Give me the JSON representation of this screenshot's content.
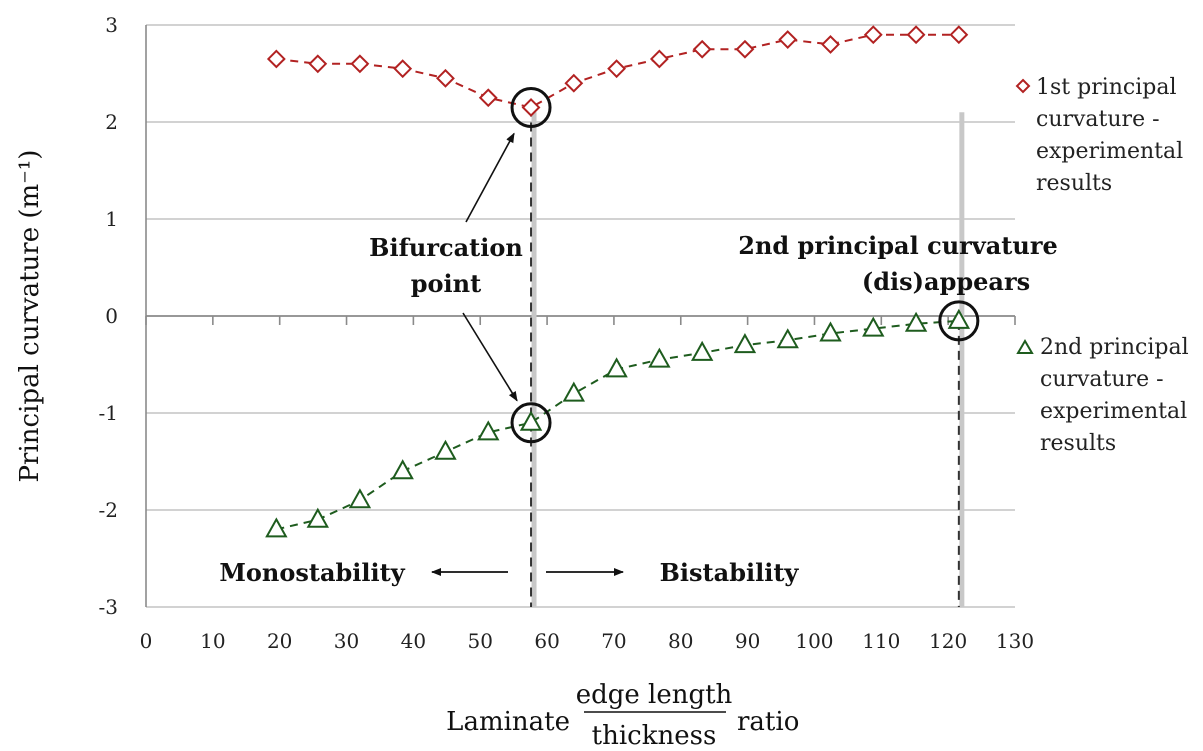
{
  "chart_data": {
    "type": "scatter",
    "xlabel_prefix": "Laminate",
    "xlabel_numerator": "edge length",
    "xlabel_denominator": "thickness",
    "xlabel_suffix": "ratio",
    "ylabel": "Principal curvature (m⁻¹)",
    "xlim": [
      0,
      130
    ],
    "ylim": [
      -3,
      3
    ],
    "x_ticks": [
      0,
      10,
      20,
      30,
      40,
      50,
      60,
      70,
      80,
      90,
      100,
      110,
      120,
      130
    ],
    "y_ticks": [
      3,
      2,
      1,
      0,
      -1,
      -2,
      -3
    ],
    "y_tick_labels": [
      "3",
      "2",
      "1",
      "0",
      "-1",
      "-2",
      "-3"
    ],
    "grid": "horizontal",
    "legend_placement": "right",
    "series": [
      {
        "name": "1st principal curvature - experimental results",
        "legend_lines": [
          "1st principal",
          "curvature -",
          "experimental",
          "results"
        ],
        "marker": "diamond",
        "color": "#b22222",
        "x": [
          19.5,
          25.7,
          32,
          38.4,
          44.8,
          51.2,
          57.6,
          64,
          70.4,
          76.8,
          83.2,
          89.6,
          96,
          102.4,
          108.8,
          115.2,
          121.6
        ],
        "y": [
          2.65,
          2.6,
          2.6,
          2.55,
          2.45,
          2.25,
          2.15,
          2.4,
          2.55,
          2.65,
          2.75,
          2.75,
          2.85,
          2.8,
          2.9,
          2.9,
          2.9
        ]
      },
      {
        "name": "2nd principal curvature - experimental results",
        "legend_lines": [
          "2nd principal",
          "curvature -",
          "experimental",
          "results"
        ],
        "marker": "triangle",
        "color": "#1e5c1e",
        "x": [
          19.5,
          25.7,
          32,
          38.4,
          44.8,
          51.2,
          57.6,
          64,
          70.4,
          76.8,
          83.2,
          89.6,
          96,
          102.4,
          108.8,
          115.2,
          121.6
        ],
        "y": [
          -2.2,
          -2.1,
          -1.9,
          -1.6,
          -1.4,
          -1.2,
          -1.1,
          -0.8,
          -0.55,
          -0.45,
          -0.38,
          -0.3,
          -0.25,
          -0.18,
          -0.13,
          -0.08,
          -0.05
        ]
      }
    ],
    "vertical_markers": [
      57.6,
      121.6
    ],
    "circled_points": [
      {
        "x": 57.6,
        "y": 2.15
      },
      {
        "x": 57.6,
        "y": -1.1
      },
      {
        "x": 121.6,
        "y": -0.05
      }
    ],
    "annotations": {
      "bifurcation": [
        "Bifurcation",
        "point"
      ],
      "second_curvature": [
        "2nd principal curvature",
        "(dis)appears"
      ],
      "monostability": "Monostability",
      "bistability": "Bistability"
    }
  }
}
